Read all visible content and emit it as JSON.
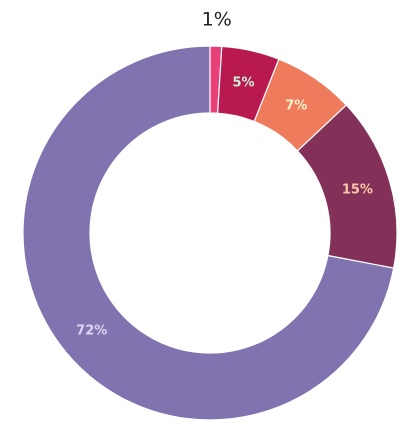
{
  "chart_data": {
    "type": "pie",
    "donut": true,
    "slices": [
      {
        "value": 72,
        "label": "72%",
        "color": "#8073b0",
        "label_color": "#dcd6f2",
        "label_position": "inside"
      },
      {
        "value": 15,
        "label": "15%",
        "color": "#843159",
        "label_color": "#f7c8a8",
        "label_position": "inside"
      },
      {
        "value": 7,
        "label": "7%",
        "color": "#ee7b5c",
        "label_color": "#fff2c8",
        "label_position": "inside"
      },
      {
        "value": 5,
        "label": "5%",
        "color": "#b8194f",
        "label_color": "#c8f0d8",
        "label_position": "inside"
      },
      {
        "value": 1,
        "label": "1%",
        "color": "#e8417a",
        "label_color": "#222222",
        "label_position": "outside"
      }
    ],
    "direction": "counterclockwise",
    "start": "top"
  }
}
